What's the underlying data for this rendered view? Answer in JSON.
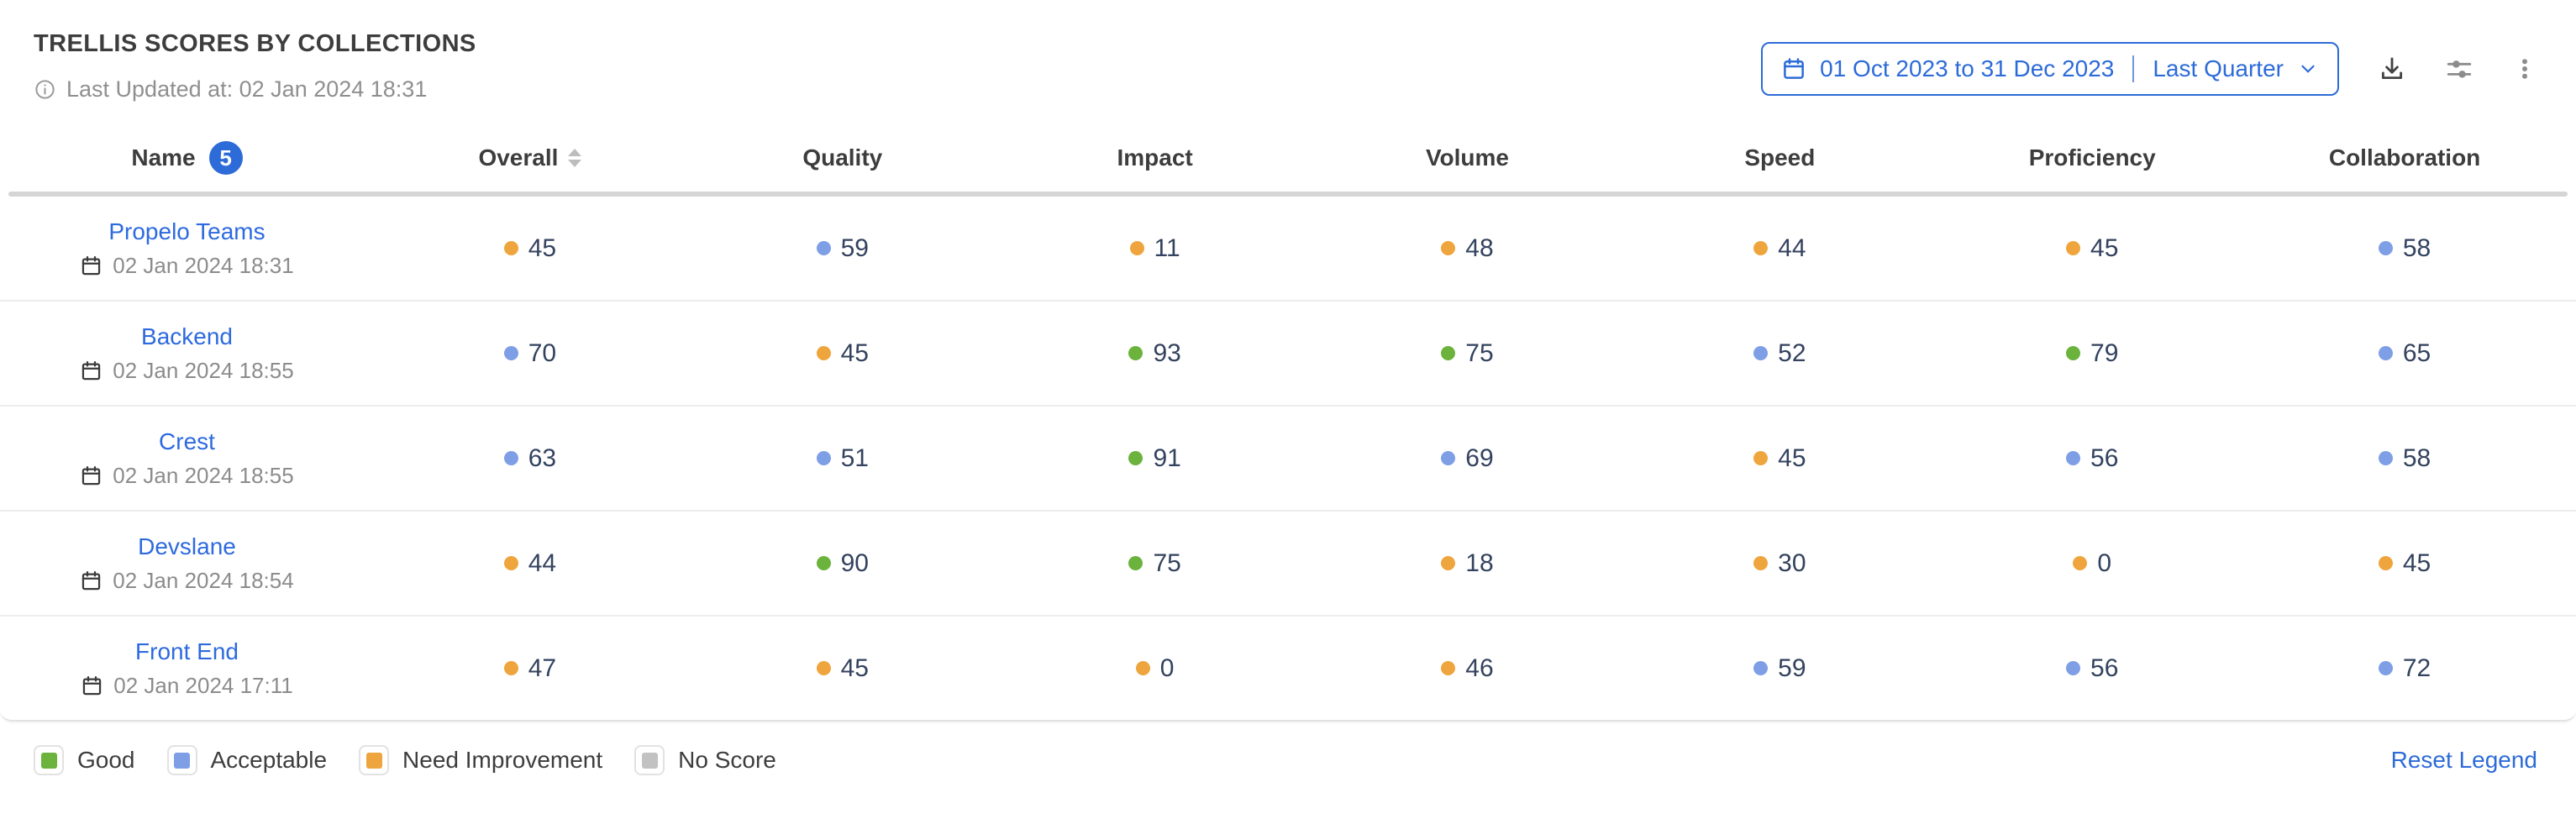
{
  "header": {
    "title": "TRELLIS SCORES BY COLLECTIONS",
    "last_updated": "Last Updated at: 02 Jan 2024 18:31",
    "date_range": "01 Oct 2023 to 31 Dec 2023",
    "date_preset": "Last Quarter"
  },
  "icons": {
    "info": "info-circle-outline",
    "calendar": "calendar-outline",
    "chevron_down": "chevron-down",
    "download": "download-tray-arrow",
    "settings": "sliders-horizontal",
    "more": "vertical-ellipsis"
  },
  "table": {
    "name_count_badge": "5",
    "columns": [
      "Name",
      "Overall",
      "Quality",
      "Impact",
      "Volume",
      "Speed",
      "Proficiency",
      "Collaboration"
    ],
    "sorter_on": "Overall",
    "rows": [
      {
        "name": "Propelo Teams",
        "updated": "02 Jan 2024 18:31",
        "scores": [
          {
            "value": 45,
            "status": "need_improvement"
          },
          {
            "value": 59,
            "status": "acceptable"
          },
          {
            "value": 11,
            "status": "need_improvement"
          },
          {
            "value": 48,
            "status": "need_improvement"
          },
          {
            "value": 44,
            "status": "need_improvement"
          },
          {
            "value": 45,
            "status": "need_improvement"
          },
          {
            "value": 58,
            "status": "acceptable"
          }
        ]
      },
      {
        "name": "Backend",
        "updated": "02 Jan 2024 18:55",
        "scores": [
          {
            "value": 70,
            "status": "acceptable"
          },
          {
            "value": 45,
            "status": "need_improvement"
          },
          {
            "value": 93,
            "status": "good"
          },
          {
            "value": 75,
            "status": "good"
          },
          {
            "value": 52,
            "status": "acceptable"
          },
          {
            "value": 79,
            "status": "good"
          },
          {
            "value": 65,
            "status": "acceptable"
          }
        ]
      },
      {
        "name": "Crest",
        "updated": "02 Jan 2024 18:55",
        "scores": [
          {
            "value": 63,
            "status": "acceptable"
          },
          {
            "value": 51,
            "status": "acceptable"
          },
          {
            "value": 91,
            "status": "good"
          },
          {
            "value": 69,
            "status": "acceptable"
          },
          {
            "value": 45,
            "status": "need_improvement"
          },
          {
            "value": 56,
            "status": "acceptable"
          },
          {
            "value": 58,
            "status": "acceptable"
          }
        ]
      },
      {
        "name": "Devslane",
        "updated": "02 Jan 2024 18:54",
        "scores": [
          {
            "value": 44,
            "status": "need_improvement"
          },
          {
            "value": 90,
            "status": "good"
          },
          {
            "value": 75,
            "status": "good"
          },
          {
            "value": 18,
            "status": "need_improvement"
          },
          {
            "value": 30,
            "status": "need_improvement"
          },
          {
            "value": 0,
            "status": "need_improvement"
          },
          {
            "value": 45,
            "status": "need_improvement"
          }
        ]
      },
      {
        "name": "Front End",
        "updated": "02 Jan 2024 17:11",
        "scores": [
          {
            "value": 47,
            "status": "need_improvement"
          },
          {
            "value": 45,
            "status": "need_improvement"
          },
          {
            "value": 0,
            "status": "need_improvement"
          },
          {
            "value": 46,
            "status": "need_improvement"
          },
          {
            "value": 59,
            "status": "acceptable"
          },
          {
            "value": 56,
            "status": "acceptable"
          },
          {
            "value": 72,
            "status": "acceptable"
          }
        ]
      }
    ]
  },
  "legend": {
    "items": [
      {
        "label": "Good",
        "status": "good"
      },
      {
        "label": "Acceptable",
        "status": "acceptable"
      },
      {
        "label": "Need Improvement",
        "status": "need_improvement"
      },
      {
        "label": "No Score",
        "status": "no_score"
      }
    ],
    "reset_label": "Reset Legend"
  },
  "colors": {
    "accent": "#2d6bd8",
    "link": "#2d6adf",
    "good": "#6bb33d",
    "acceptable": "#7e9fe6",
    "need_improvement": "#efa53d",
    "no_score": "#c2c2c2",
    "value_text": "#33425e",
    "muted_text": "#8f8f8f",
    "heading_text": "#3d3d3d"
  }
}
